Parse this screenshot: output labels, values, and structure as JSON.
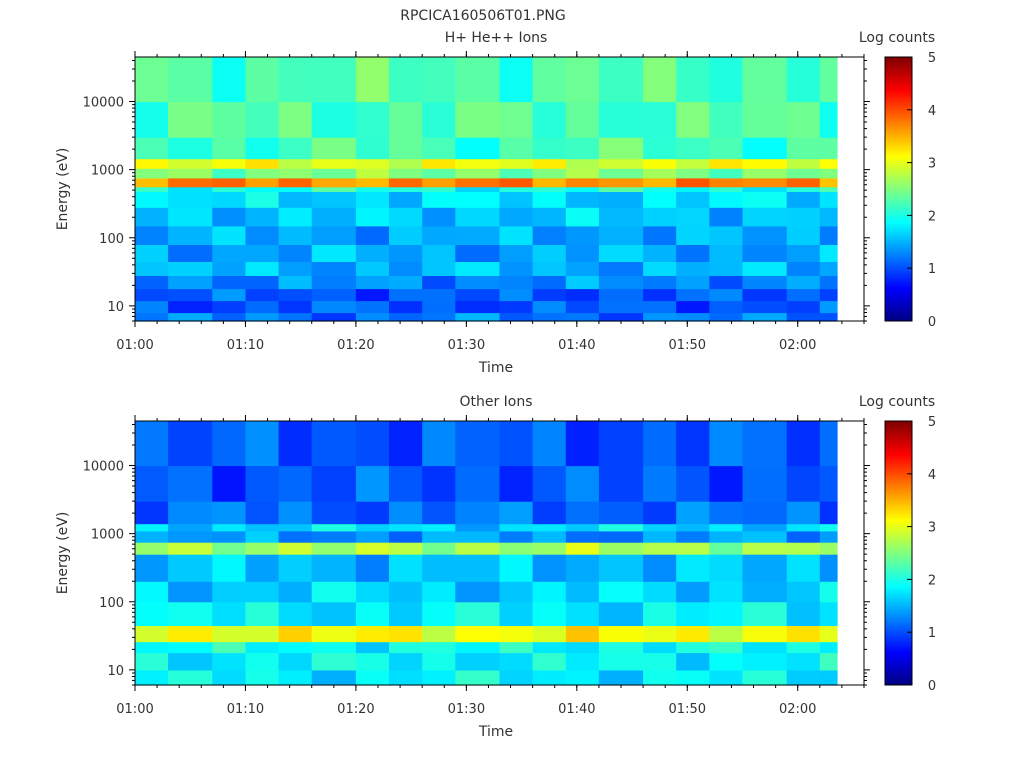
{
  "figure": {
    "title": "RPCICA160506T01.PNG"
  },
  "chart_data": [
    {
      "type": "heatmap",
      "title": "H+ He++ Ions",
      "xlabel": "Time",
      "ylabel": "Energy (eV)",
      "y_scale": "log",
      "xlim": [
        "01:00",
        "02:06"
      ],
      "ylim": [
        6,
        45000
      ],
      "x_ticks": [
        "01:00",
        "01:10",
        "01:20",
        "01:30",
        "01:40",
        "01:50",
        "02:00"
      ],
      "y_ticks": [
        10,
        100,
        1000,
        10000
      ],
      "y_tick_labels": [
        "10",
        "100",
        "1000",
        "10000"
      ],
      "time_bins": [
        "01:00",
        "01:03",
        "01:07",
        "01:10",
        "01:13",
        "01:16",
        "01:20",
        "01:23",
        "01:26",
        "01:29",
        "01:33",
        "01:36",
        "01:39",
        "01:42",
        "01:46",
        "01:49",
        "01:52",
        "01:55",
        "01:59",
        "02:02"
      ],
      "energy_bands": [
        {
          "low": 6,
          "high": 8,
          "log_counts": 1.2
        },
        {
          "low": 8,
          "high": 12,
          "log_counts": 1.05
        },
        {
          "low": 12,
          "high": 18,
          "log_counts": 1.05
        },
        {
          "low": 18,
          "high": 28,
          "log_counts": 1.3
        },
        {
          "low": 28,
          "high": 45,
          "log_counts": 1.5
        },
        {
          "low": 45,
          "high": 80,
          "log_counts": 1.45
        },
        {
          "low": 80,
          "high": 150,
          "log_counts": 1.45
        },
        {
          "low": 150,
          "high": 280,
          "log_counts": 1.6
        },
        {
          "low": 280,
          "high": 480,
          "log_counts": 1.7
        },
        {
          "low": 480,
          "high": 560,
          "log_counts": 2.0
        },
        {
          "low": 560,
          "high": 760,
          "log_counts": 3.7
        },
        {
          "low": 760,
          "high": 1050,
          "log_counts": 2.5
        },
        {
          "low": 1050,
          "high": 1450,
          "log_counts": 3.0
        },
        {
          "low": 1450,
          "high": 3000,
          "log_counts": 2.2
        },
        {
          "low": 3000,
          "high": 10000,
          "log_counts": 2.25
        },
        {
          "low": 10000,
          "high": 45000,
          "log_counts": 2.25
        }
      ],
      "colorbar": {
        "label": "Log counts",
        "range": [
          0,
          5
        ],
        "ticks": [
          "0",
          "1",
          "2",
          "3",
          "4",
          "5"
        ],
        "colormap": "jet"
      }
    },
    {
      "type": "heatmap",
      "title": "Other Ions",
      "xlabel": "Time",
      "ylabel": "Energy (eV)",
      "y_scale": "log",
      "xlim": [
        "01:00",
        "02:06"
      ],
      "ylim": [
        6,
        45000
      ],
      "x_ticks": [
        "01:00",
        "01:10",
        "01:20",
        "01:30",
        "01:40",
        "01:50",
        "02:00"
      ],
      "y_ticks": [
        10,
        100,
        1000,
        10000
      ],
      "y_tick_labels": [
        "10",
        "100",
        "1000",
        "10000"
      ],
      "time_bins": [
        "01:00",
        "01:03",
        "01:07",
        "01:10",
        "01:13",
        "01:16",
        "01:20",
        "01:23",
        "01:26",
        "01:29",
        "01:33",
        "01:36",
        "01:39",
        "01:42",
        "01:46",
        "01:49",
        "01:52",
        "01:55",
        "01:59",
        "02:02"
      ],
      "energy_bands": [
        {
          "low": 6,
          "high": 10,
          "log_counts": 1.8
        },
        {
          "low": 10,
          "high": 18,
          "log_counts": 1.85
        },
        {
          "low": 18,
          "high": 26,
          "log_counts": 1.9
        },
        {
          "low": 26,
          "high": 45,
          "log_counts": 3.1
        },
        {
          "low": 45,
          "high": 100,
          "log_counts": 1.8
        },
        {
          "low": 100,
          "high": 200,
          "log_counts": 1.65
        },
        {
          "low": 200,
          "high": 500,
          "log_counts": 1.55
        },
        {
          "low": 500,
          "high": 750,
          "log_counts": 2.7
        },
        {
          "low": 750,
          "high": 1100,
          "log_counts": 1.35
        },
        {
          "low": 1100,
          "high": 1400,
          "log_counts": 1.7
        },
        {
          "low": 1400,
          "high": 3000,
          "log_counts": 1.15
        },
        {
          "low": 3000,
          "high": 10000,
          "log_counts": 1.05
        },
        {
          "low": 10000,
          "high": 45000,
          "log_counts": 1.05
        }
      ],
      "colorbar": {
        "label": "Log counts",
        "range": [
          0,
          5
        ],
        "ticks": [
          "0",
          "1",
          "2",
          "3",
          "4",
          "5"
        ],
        "colormap": "jet"
      }
    }
  ]
}
